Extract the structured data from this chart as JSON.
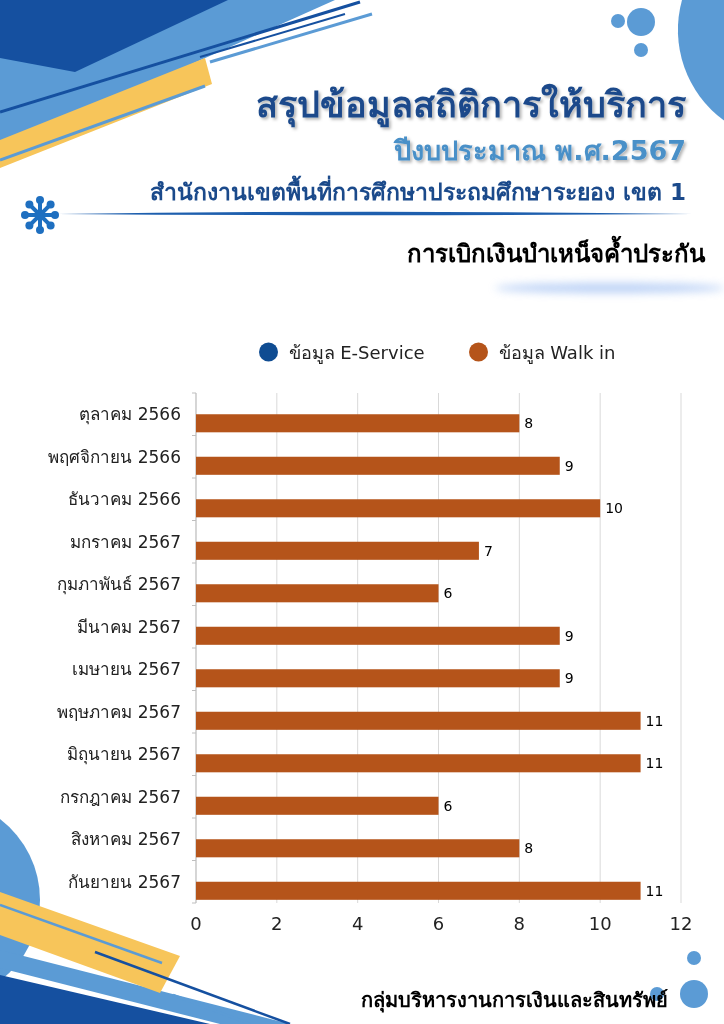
{
  "chart_data": {
    "type": "bar",
    "orientation": "horizontal",
    "title": "สรุปข้อมูลสถิติการให้บริการ",
    "subtitle": "ปีงบประมาณ พ.ศ.2567",
    "annotations": [
      "สำนักงานเขตพื้นที่การศึกษาประถมศึกษาระยอง เขต 1",
      "การเบิกเงินบำเหน็จค้ำประกัน",
      "กลุ่มบริหารงานการเงินและสินทรัพย์"
    ],
    "categories": [
      "ตุลาคม 2566",
      "พฤศจิกายน 2566",
      "ธันวาคม 2566",
      "มกราคม 2567",
      "กุมภาพันธ์ 2567",
      "มีนาคม 2567",
      "เมษายน 2567",
      "พฤษภาคม 2567",
      "มิถุนายน 2567",
      "กรกฎาคม 2567",
      "สิงหาคม 2567",
      "กันยายน 2567"
    ],
    "series": [
      {
        "name": "ข้อมูล E-Service",
        "color": "#0f4c92",
        "values": [
          null,
          null,
          null,
          null,
          null,
          null,
          null,
          null,
          null,
          null,
          null,
          null
        ]
      },
      {
        "name": "ข้อมูล Walk in",
        "color": "#b5541a",
        "values": [
          8,
          9,
          10,
          7,
          6,
          9,
          9,
          11,
          11,
          6,
          8,
          11
        ]
      }
    ],
    "xlim": [
      0,
      12
    ],
    "xticks": [
      0,
      2,
      4,
      6,
      8,
      10,
      12
    ],
    "grid": "x",
    "legend": "top",
    "data_labels": true
  }
}
